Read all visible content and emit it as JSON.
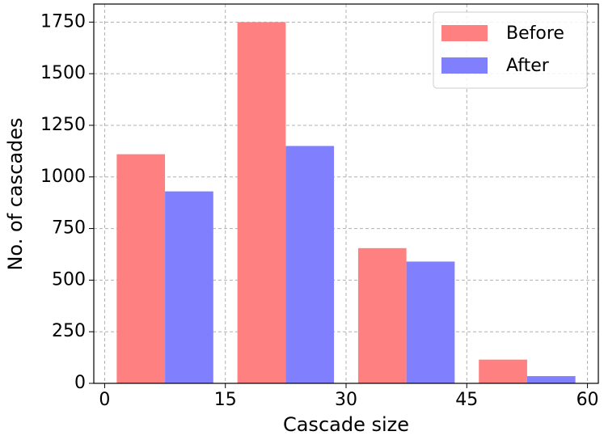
{
  "chart_data": {
    "type": "histogram",
    "xlabel": "Cascade size",
    "ylabel": "No. of cascades",
    "bins": [
      0,
      15,
      30,
      45,
      60
    ],
    "series": [
      {
        "name": "Before",
        "color": "#ff8080",
        "values": [
          1110,
          1750,
          655,
          115
        ]
      },
      {
        "name": "After",
        "color": "#8080ff",
        "values": [
          930,
          1150,
          590,
          35
        ]
      }
    ],
    "xlim": [
      -1.35,
      61.35
    ],
    "ylim": [
      0,
      1837.5
    ],
    "xticks": [
      0,
      15,
      30,
      45,
      60
    ],
    "yticks": [
      0,
      250,
      500,
      750,
      1000,
      1250,
      1500,
      1750
    ],
    "grid": true,
    "legend": "upper right"
  }
}
